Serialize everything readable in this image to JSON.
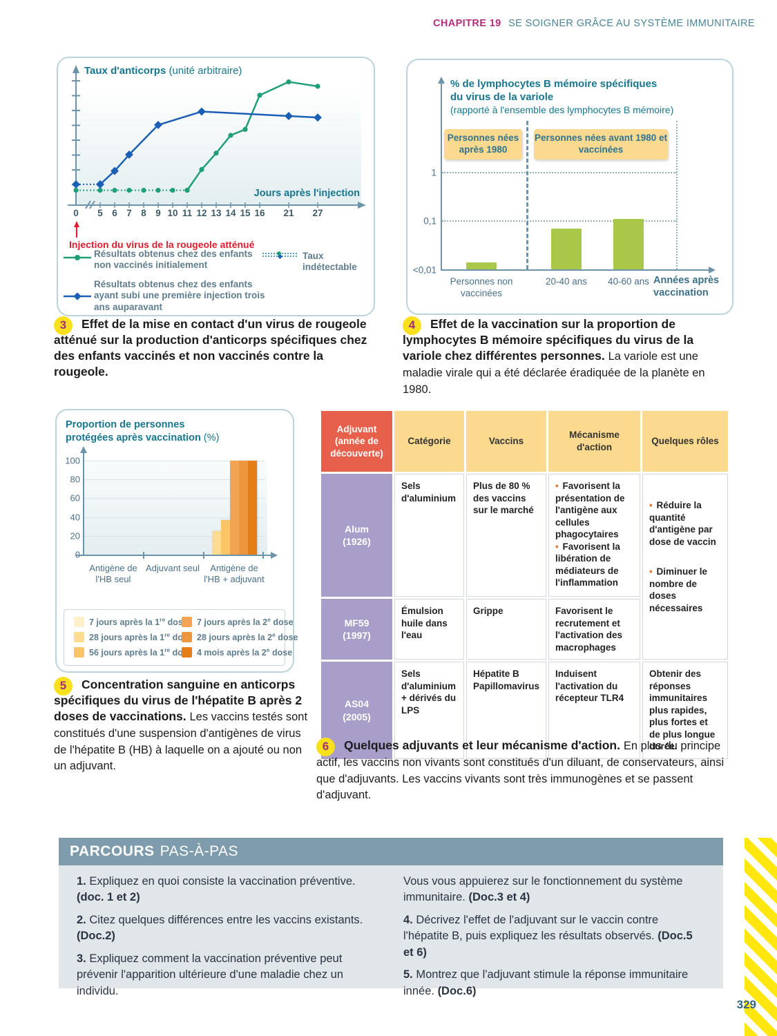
{
  "page": {
    "chapter_label": "CHAPITRE 19",
    "chapter_title": "SE SOIGNER GRÂCE AU SYSTÈME IMMUNITAIRE",
    "page_number": "329"
  },
  "chart_data": [
    {
      "type": "line",
      "title_bold": "Taux d'anticorps",
      "title_normal": "(unité arbitraire)",
      "xlabel": "Jours après l'injection",
      "x_ticks": [
        0,
        5,
        6,
        7,
        8,
        9,
        10,
        11,
        12,
        13,
        14,
        15,
        16,
        21,
        27
      ],
      "ylim": [
        0,
        9
      ],
      "annotation": "Injection du virus de la rougeole atténué",
      "extra_legend": "Taux indétectable",
      "series": [
        {
          "name": "Résultats obtenus chez des enfants non vaccinés initialement",
          "color": "#1f9e77",
          "marker": "circle",
          "dotted": {
            "x": [
              0,
              5,
              6,
              7,
              8,
              9,
              10,
              11
            ],
            "y": [
              1,
              1,
              1,
              1,
              1,
              1,
              1,
              1
            ]
          },
          "solid": {
            "x": [
              11,
              12,
              13,
              14,
              15,
              16,
              21,
              27
            ],
            "y": [
              1,
              2.4,
              3.5,
              4.7,
              5.1,
              7.4,
              8.3,
              8.0
            ]
          }
        },
        {
          "name": "Résultats obtenus chez des enfants ayant subi une première injection trois ans auparavant",
          "color": "#1b5fb5",
          "marker": "diamond",
          "dotted": {
            "x": [
              0,
              5
            ],
            "y": [
              1.4,
              1.4
            ]
          },
          "solid": {
            "x": [
              5,
              6,
              7,
              9,
              12,
              21,
              27
            ],
            "y": [
              1.4,
              2.3,
              3.4,
              5.4,
              6.3,
              6.0,
              5.9
            ]
          }
        }
      ]
    },
    {
      "type": "bar",
      "scale": "log",
      "title_bold_line1": "% de lymphocytes B mémoire spécifiques",
      "title_bold_line2": "du virus de la variole",
      "title_normal": "(rapporté à l'ensemble des lymphocytes B mémoire)",
      "xlabel_line1": "Années après",
      "xlabel_line2": "vaccination",
      "y_ticks": [
        {
          "label": "1",
          "value": 1
        },
        {
          "label": "0,1",
          "value": 0.1
        },
        {
          "label": "<0,01",
          "value": 0.01
        }
      ],
      "categories": [
        "Personnes non vaccinées",
        "20-40 ans",
        "40-60 ans"
      ],
      "values": [
        0.014,
        0.07,
        0.11
      ],
      "bar_color": "#a9c84a",
      "group_labels": [
        "Personnes nées après 1980",
        "Personnes nées avant 1980 et vaccinées"
      ]
    },
    {
      "type": "bar",
      "title_bold_line1": "Proportion de personnes",
      "title_bold_line2": "protégées après vaccination",
      "title_normal": "(%)",
      "y_ticks": [
        0,
        20,
        40,
        60,
        80,
        100
      ],
      "ylim": [
        0,
        100
      ],
      "categories": [
        "Antigène de l'HB seul",
        "Adjuvant seul",
        "Antigène de l'HB + adjuvant"
      ],
      "series": [
        {
          "label": "7 jours après la 1re dose",
          "color": "#fdf0cb",
          "values": [
            0,
            0,
            0
          ]
        },
        {
          "label": "28 jours après la 1re dose",
          "color": "#fcdc8f",
          "values": [
            0,
            0,
            25
          ]
        },
        {
          "label": "56 jours après la 1re dose",
          "color": "#f9c566",
          "values": [
            0,
            0,
            37
          ]
        },
        {
          "label": "7 jours après la 2e dose",
          "color": "#f2a452",
          "values": [
            0,
            0,
            100
          ]
        },
        {
          "label": "28 jours après la 2e dose",
          "color": "#ee9540",
          "values": [
            0,
            0,
            100
          ]
        },
        {
          "label": "4 mois après la 2e dose",
          "color": "#e67e17",
          "values": [
            0,
            0,
            100
          ]
        }
      ]
    }
  ],
  "captions": [
    {
      "number": "3",
      "bold": "Effet de la mise en contact d'un virus de rougeole atténué sur la production d'anticorps spécifiques chez des enfants vaccinés et non vaccinés contre la rougeole.",
      "normal": ""
    },
    {
      "number": "4",
      "bold": "Effet de la vaccination sur la proportion de lymphocytes B mémoire spécifiques du virus de la variole chez différentes personnes.",
      "normal": "La variole est une maladie virale qui a été déclarée éradiquée de la planète en 1980."
    },
    {
      "number": "5",
      "bold": "Concentration sanguine en anticorps spécifiques du virus de l'hépatite B après 2 doses de vaccinations.",
      "normal": "Les vaccins testés sont constitués d'une suspension d'antigènes de virus de l'hépatite B (HB) à laquelle on a ajouté ou non un adjuvant."
    },
    {
      "number": "6",
      "bold": "Quelques adjuvants et leur mécanisme d'action.",
      "normal": "En plus du principe actif, les vaccins non vivants sont constitués d'un diluant, de conservateurs, ainsi que d'adjuvants. Les vaccins vivants sont très immunogènes et se passent d'adjuvant."
    }
  ],
  "table": {
    "headers": [
      "Adjuvant (année de découverte)",
      "Catégorie",
      "Vaccins",
      "Mécanisme d'action",
      "Quelques rôles"
    ],
    "rows": [
      {
        "name": "Alum",
        "year": "(1926)",
        "categorie": "Sels d'aluminium",
        "vaccins_1": "Plus de 80 % des vaccins sur le marché",
        "vaccins_2": "",
        "mecanisme_1": "Favorisent la présentation de l'antigène aux cellules phagocytaires",
        "mecanisme_2": "Favorisent la libération de médiateurs de l'inflammation"
      },
      {
        "name": "MF59",
        "year": "(1997)",
        "categorie": "Émulsion huile dans l'eau",
        "vaccins_1": "Grippe",
        "vaccins_2": "",
        "mecanisme_1": "Favorisent le recrutement et l'activation des macrophages",
        "mecanisme_2": ""
      },
      {
        "name": "AS04",
        "year": "(2005)",
        "categorie": "Sels d'aluminium + dérivés du LPS",
        "vaccins_1": "Hépatite B",
        "vaccins_2": "Papillomavirus",
        "mecanisme_1": "Induisent l'activation du récepteur TLR4",
        "mecanisme_2": ""
      }
    ],
    "roles_shared_1": "Réduire la quantité d'antigène par dose de vaccin",
    "roles_shared_2": "Diminuer le nombre de doses nécessaires",
    "roles_as04": "Obtenir des réponses immunitaires plus rapides, plus fortes et de plus longue durée."
  },
  "parcours": {
    "title_bold": "PARCOURS",
    "title_light": "PAS-À-PAS",
    "items_left": [
      {
        "num": "1.",
        "text": "Expliquez en quoi consiste la vaccination préventive.",
        "ref": "(doc. 1 et 2)"
      },
      {
        "num": "2.",
        "text": "Citez quelques différences entre les vaccins existants.",
        "ref": "(Doc.2)"
      },
      {
        "num": "3.",
        "text": "Expliquez comment la vaccination préventive peut prévenir l'apparition ultérieure d'une maladie chez un individu.",
        "ref": ""
      }
    ],
    "items_right": [
      {
        "num": "",
        "text": "Vous vous appuierez sur le fonctionnement du système immunitaire.",
        "ref": "(Doc.3 et 4)"
      },
      {
        "num": "4.",
        "text": "Décrivez l'effet de l'adjuvant sur le vaccin contre l'hépatite B, puis expliquez les résultats observés.",
        "ref": "(Doc.5 et 6)"
      },
      {
        "num": "5.",
        "text": "Montrez que l'adjuvant stimule la réponse immunitaire innée.",
        "ref": "(Doc.6)"
      }
    ]
  }
}
